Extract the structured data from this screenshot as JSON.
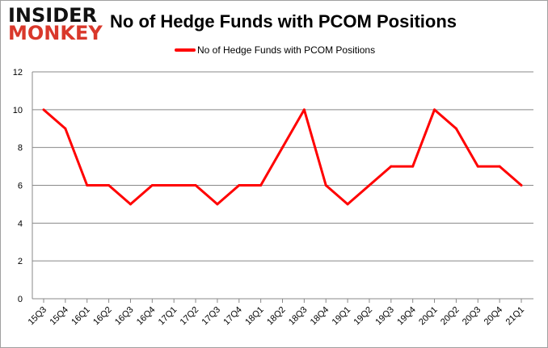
{
  "logo": {
    "line1": "INSIDER",
    "line2": "MONKEY"
  },
  "chart_data": {
    "type": "line",
    "title": "No of Hedge Funds with PCOM Positions",
    "xlabel": "",
    "ylabel": "",
    "categories": [
      "15Q3",
      "15Q4",
      "16Q1",
      "16Q2",
      "16Q3",
      "16Q4",
      "17Q1",
      "17Q2",
      "17Q3",
      "17Q4",
      "18Q1",
      "18Q2",
      "18Q3",
      "18Q4",
      "19Q1",
      "19Q2",
      "19Q3",
      "19Q4",
      "20Q1",
      "20Q2",
      "20Q3",
      "20Q4",
      "21Q1"
    ],
    "series": [
      {
        "name": "No of Hedge Funds with PCOM Positions",
        "color": "#ff0000",
        "values": [
          10,
          9,
          6,
          6,
          5,
          6,
          6,
          6,
          5,
          6,
          6,
          8,
          10,
          6,
          5,
          6,
          7,
          7,
          10,
          9,
          7,
          7,
          6
        ]
      }
    ],
    "ylim": [
      0,
      12
    ],
    "yticks": [
      0,
      2,
      4,
      6,
      8,
      10,
      12
    ],
    "grid": true,
    "legend": "top-center"
  }
}
